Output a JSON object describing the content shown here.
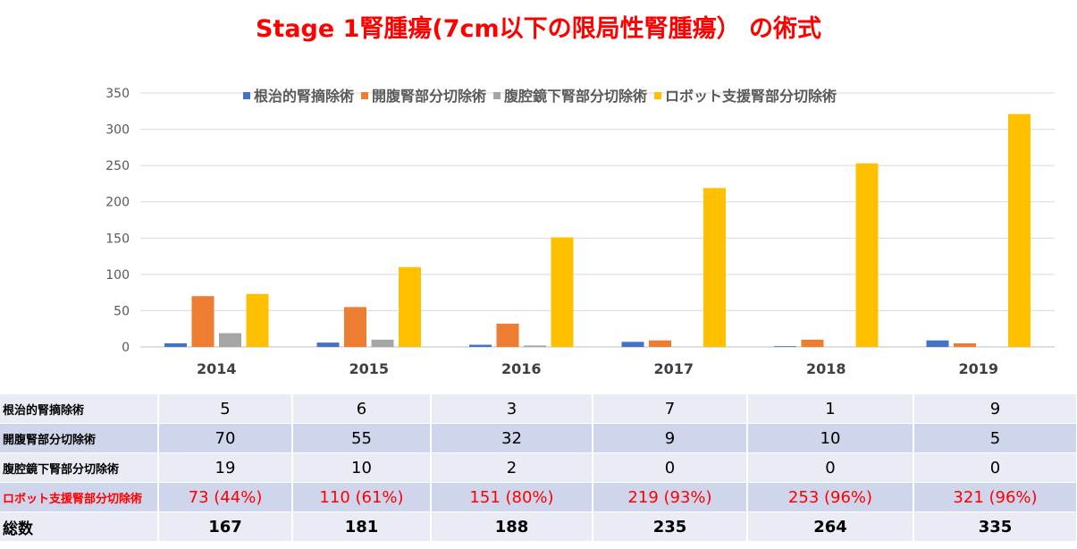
{
  "chart_data": {
    "type": "bar",
    "title": "Stage 1腎腫瘍(7cm以下の限局性腎腫瘍） の術式",
    "categories": [
      "2014",
      "2015",
      "2016",
      "2017",
      "2018",
      "2019"
    ],
    "series": [
      {
        "name": "根治的腎摘除術",
        "color": "#4472c4",
        "values": [
          5,
          6,
          3,
          7,
          1,
          9
        ]
      },
      {
        "name": "開腹腎部分切除術",
        "color": "#ed7d31",
        "values": [
          70,
          55,
          32,
          9,
          10,
          5
        ]
      },
      {
        "name": "腹腔鏡下腎部分切除術",
        "color": "#a5a5a5",
        "values": [
          19,
          10,
          2,
          0,
          0,
          0
        ]
      },
      {
        "name": "ロボット支援腎部分切除術",
        "color": "#ffc000",
        "values": [
          73,
          110,
          151,
          219,
          253,
          321
        ]
      }
    ],
    "yticks": [
      "0",
      "50",
      "100",
      "150",
      "200",
      "250",
      "300",
      "350"
    ],
    "ylim": [
      0,
      350
    ],
    "grid": true,
    "legend_position": "top"
  },
  "table": {
    "rows": [
      {
        "label": "根治的腎摘除術",
        "cells": [
          "5",
          "6",
          "3",
          "7",
          "1",
          "9"
        ]
      },
      {
        "label": "開腹腎部分切除術",
        "cells": [
          "70",
          "55",
          "32",
          "9",
          "10",
          "5"
        ]
      },
      {
        "label": "腹腔鏡下腎部分切除術",
        "cells": [
          "19",
          "10",
          "2",
          "0",
          "0",
          "0"
        ]
      },
      {
        "label": "ロボット支援腎部分切除術",
        "cells": [
          "73 (44%)",
          "110 (61%)",
          "151 (80%)",
          "219 (93%)",
          "253 (96%)",
          "321 (96%)"
        ]
      },
      {
        "label": "総数",
        "cells": [
          "167",
          "181",
          "188",
          "235",
          "264",
          "335"
        ]
      }
    ]
  }
}
